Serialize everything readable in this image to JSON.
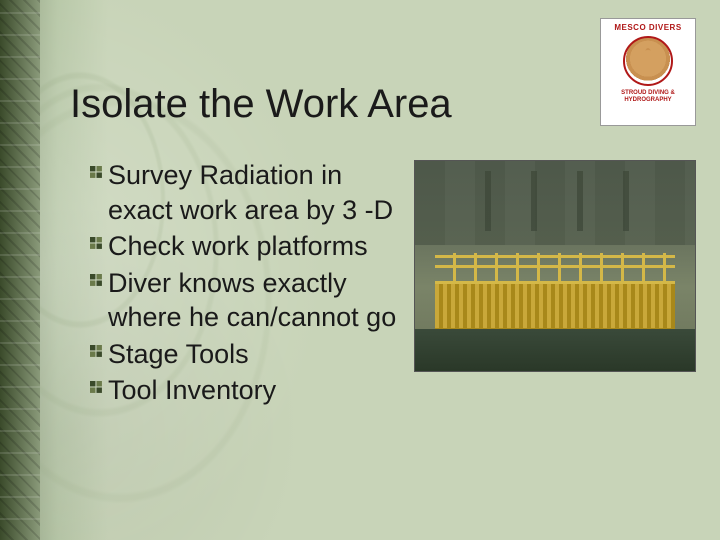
{
  "title": "Isolate the Work Area",
  "logo": {
    "top_text": "MESCO DIVERS",
    "bottom_text": "STROUD DIVING & HYDROGRAPHY"
  },
  "bullets": [
    "Survey Radiation in exact work area by 3 -D",
    "Check work platforms",
    "Diver knows exactly where he can/cannot go",
    "Stage Tools",
    "Tool Inventory"
  ],
  "colors": {
    "background": "#c8d4b8",
    "text": "#1a1a1a",
    "logo_accent": "#b01818",
    "platform": "#c9a83a"
  }
}
